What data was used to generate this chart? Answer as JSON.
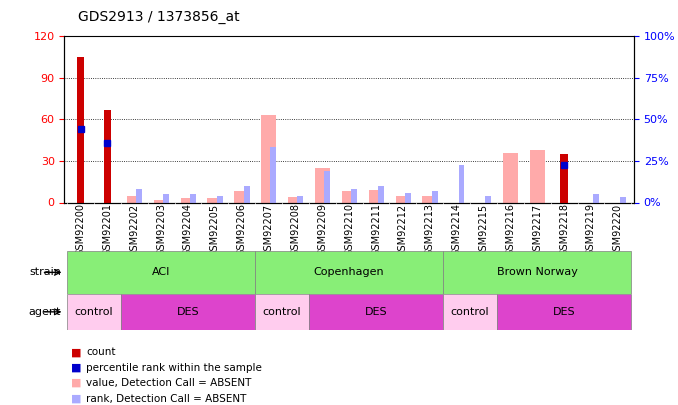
{
  "title": "GDS2913 / 1373856_at",
  "samples": [
    "GSM92200",
    "GSM92201",
    "GSM92202",
    "GSM92203",
    "GSM92204",
    "GSM92205",
    "GSM92206",
    "GSM92207",
    "GSM92208",
    "GSM92209",
    "GSM92210",
    "GSM92211",
    "GSM92212",
    "GSM92213",
    "GSM92214",
    "GSM92215",
    "GSM92216",
    "GSM92217",
    "GSM92218",
    "GSM92219",
    "GSM92220"
  ],
  "count": [
    105,
    67,
    0,
    0,
    0,
    0,
    0,
    0,
    0,
    0,
    0,
    0,
    0,
    0,
    0,
    0,
    0,
    0,
    35,
    0,
    0
  ],
  "percentile_rank": [
    53,
    43,
    0,
    0,
    0,
    0,
    0,
    0,
    0,
    0,
    0,
    0,
    0,
    0,
    0,
    0,
    0,
    0,
    27,
    0,
    0
  ],
  "value_absent": [
    0,
    0,
    5,
    2,
    3,
    3,
    8,
    63,
    4,
    25,
    8,
    9,
    5,
    5,
    0,
    0,
    36,
    38,
    0,
    0,
    0
  ],
  "rank_absent": [
    0,
    0,
    10,
    6,
    6,
    5,
    12,
    40,
    5,
    23,
    10,
    12,
    7,
    8,
    27,
    5,
    0,
    0,
    0,
    6,
    4
  ],
  "ylim_left": [
    0,
    120
  ],
  "yticks_left": [
    0,
    30,
    60,
    90,
    120
  ],
  "ylim_right": [
    0,
    100
  ],
  "yticks_right": [
    0,
    25,
    50,
    75,
    100
  ],
  "ylabel_right_labels": [
    "0%",
    "25%",
    "50%",
    "75%",
    "100%"
  ],
  "strain_groups": [
    {
      "label": "ACI",
      "start": 0,
      "end": 6
    },
    {
      "label": "Copenhagen",
      "start": 7,
      "end": 13
    },
    {
      "label": "Brown Norway",
      "start": 14,
      "end": 20
    }
  ],
  "agent_groups": [
    {
      "label": "control",
      "start": 0,
      "end": 1
    },
    {
      "label": "DES",
      "start": 2,
      "end": 6
    },
    {
      "label": "control",
      "start": 7,
      "end": 8
    },
    {
      "label": "DES",
      "start": 9,
      "end": 13
    },
    {
      "label": "control",
      "start": 14,
      "end": 15
    },
    {
      "label": "DES",
      "start": 16,
      "end": 20
    }
  ],
  "color_count": "#cc0000",
  "color_percentile": "#0000cc",
  "color_value_absent": "#ffaaaa",
  "color_rank_absent": "#aaaaff",
  "color_strain_bg": "#88ee77",
  "color_agent_control": "#ffccee",
  "color_agent_des": "#dd44cc",
  "color_xticklabel_bg": "#cccccc",
  "bar_width": 0.35
}
